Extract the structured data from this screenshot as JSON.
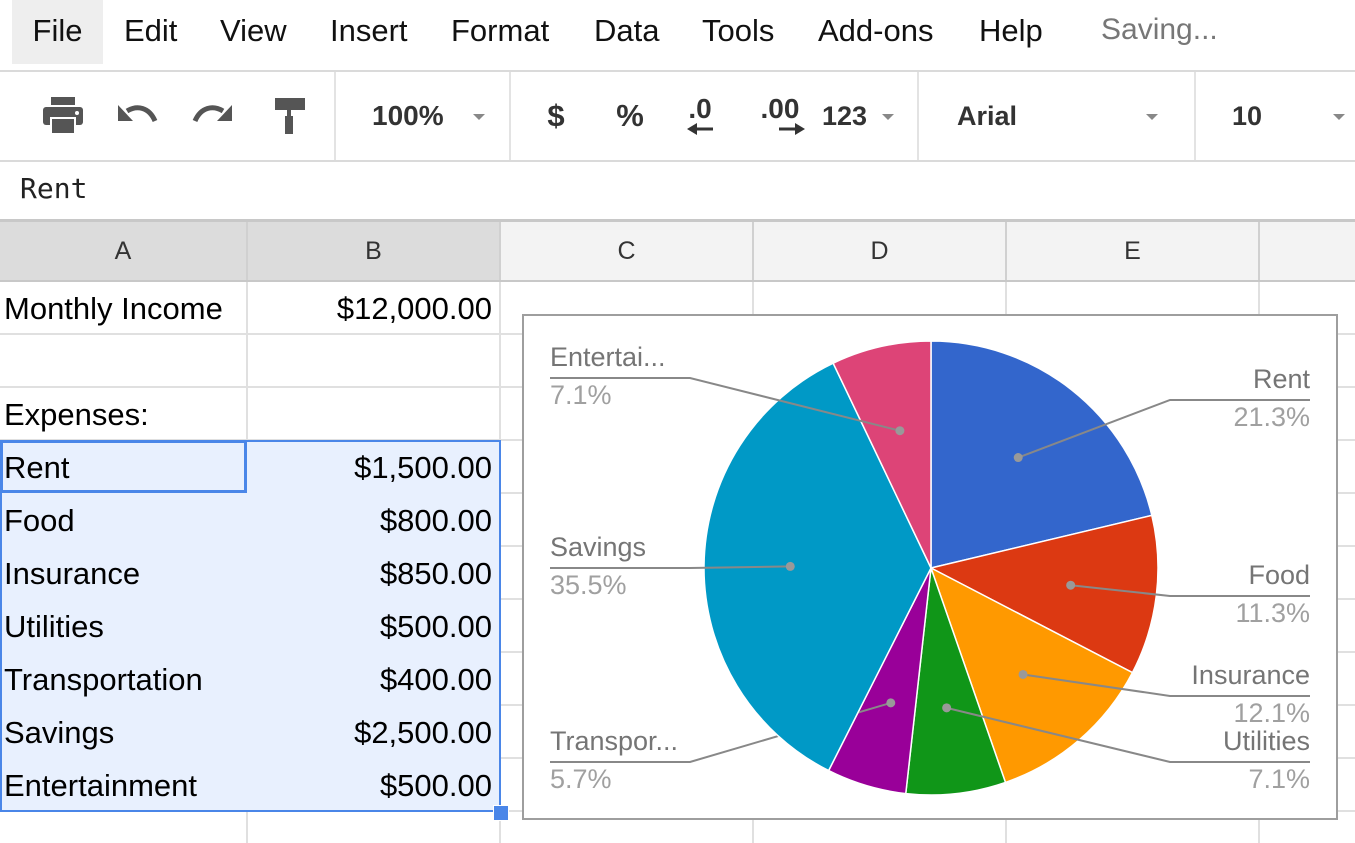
{
  "menu": {
    "items": [
      "File",
      "Edit",
      "View",
      "Insert",
      "Format",
      "Data",
      "Tools",
      "Add-ons",
      "Help"
    ],
    "status": "Saving..."
  },
  "toolbar": {
    "zoom": "100%",
    "currency": "$",
    "percent": "%",
    "decrease_decimal": ".0",
    "increase_decimal": ".00",
    "more_formats": "123",
    "font": "Arial",
    "font_size": "10",
    "icons": [
      "print-icon",
      "undo-icon",
      "redo-icon",
      "paint-format-icon"
    ]
  },
  "formula_bar": {
    "value": "Rent"
  },
  "columns": [
    "A",
    "B",
    "C",
    "D",
    "E"
  ],
  "rows": [
    {
      "a": "Monthly Income",
      "b": "$12,000.00"
    },
    {
      "a": "",
      "b": ""
    },
    {
      "a": "Expenses:",
      "b": ""
    },
    {
      "a": "Rent",
      "b": "$1,500.00"
    },
    {
      "a": "Food",
      "b": "$800.00"
    },
    {
      "a": "Insurance",
      "b": "$850.00"
    },
    {
      "a": "Utilities",
      "b": "$500.00"
    },
    {
      "a": "Transportation",
      "b": "$400.00"
    },
    {
      "a": "Savings",
      "b": "$2,500.00"
    },
    {
      "a": "Entertainment",
      "b": "$500.00"
    }
  ],
  "chart_data": {
    "type": "pie",
    "title": "",
    "slices": [
      {
        "label": "Rent",
        "value": 1500,
        "percent_label": "21.3%",
        "color": "#3366cc"
      },
      {
        "label": "Food",
        "value": 800,
        "percent_label": "11.3%",
        "color": "#dc3912"
      },
      {
        "label": "Insurance",
        "value": 850,
        "percent_label": "12.1%",
        "color": "#ff9900"
      },
      {
        "label": "Utilities",
        "value": 500,
        "percent_label": "7.1%",
        "color": "#109618"
      },
      {
        "label": "Transpor...",
        "value": 400,
        "percent_label": "5.7%",
        "color": "#990099"
      },
      {
        "label": "Savings",
        "value": 2500,
        "percent_label": "35.5%",
        "color": "#0099c6"
      },
      {
        "label": "Entertai...",
        "value": 500,
        "percent_label": "7.1%",
        "color": "#dd4477"
      }
    ]
  }
}
